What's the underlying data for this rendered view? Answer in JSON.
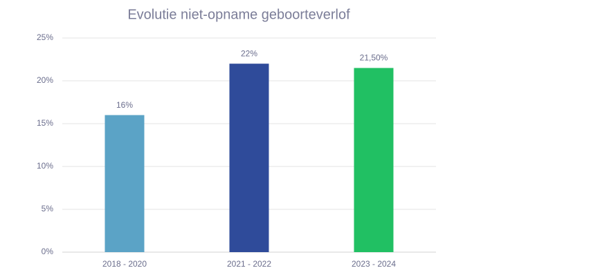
{
  "chart_data": {
    "type": "bar",
    "title": "Evolutie niet-opname geboorteverlof",
    "categories": [
      "2018 - 2020",
      "2021 - 2022",
      "2023 - 2024"
    ],
    "values": [
      16,
      22,
      21.5
    ],
    "value_labels": [
      "16%",
      "22%",
      "21,50%"
    ],
    "colors": [
      "#5ba3c6",
      "#2f4b9a",
      "#21c063"
    ],
    "ylim": [
      0,
      25
    ],
    "yticks": [
      {
        "value": 0,
        "label": "0%"
      },
      {
        "value": 5,
        "label": "5%"
      },
      {
        "value": 10,
        "label": "10%"
      },
      {
        "value": 15,
        "label": "15%"
      },
      {
        "value": 20,
        "label": "20%"
      },
      {
        "value": 25,
        "label": "25%"
      }
    ],
    "grid": true
  }
}
